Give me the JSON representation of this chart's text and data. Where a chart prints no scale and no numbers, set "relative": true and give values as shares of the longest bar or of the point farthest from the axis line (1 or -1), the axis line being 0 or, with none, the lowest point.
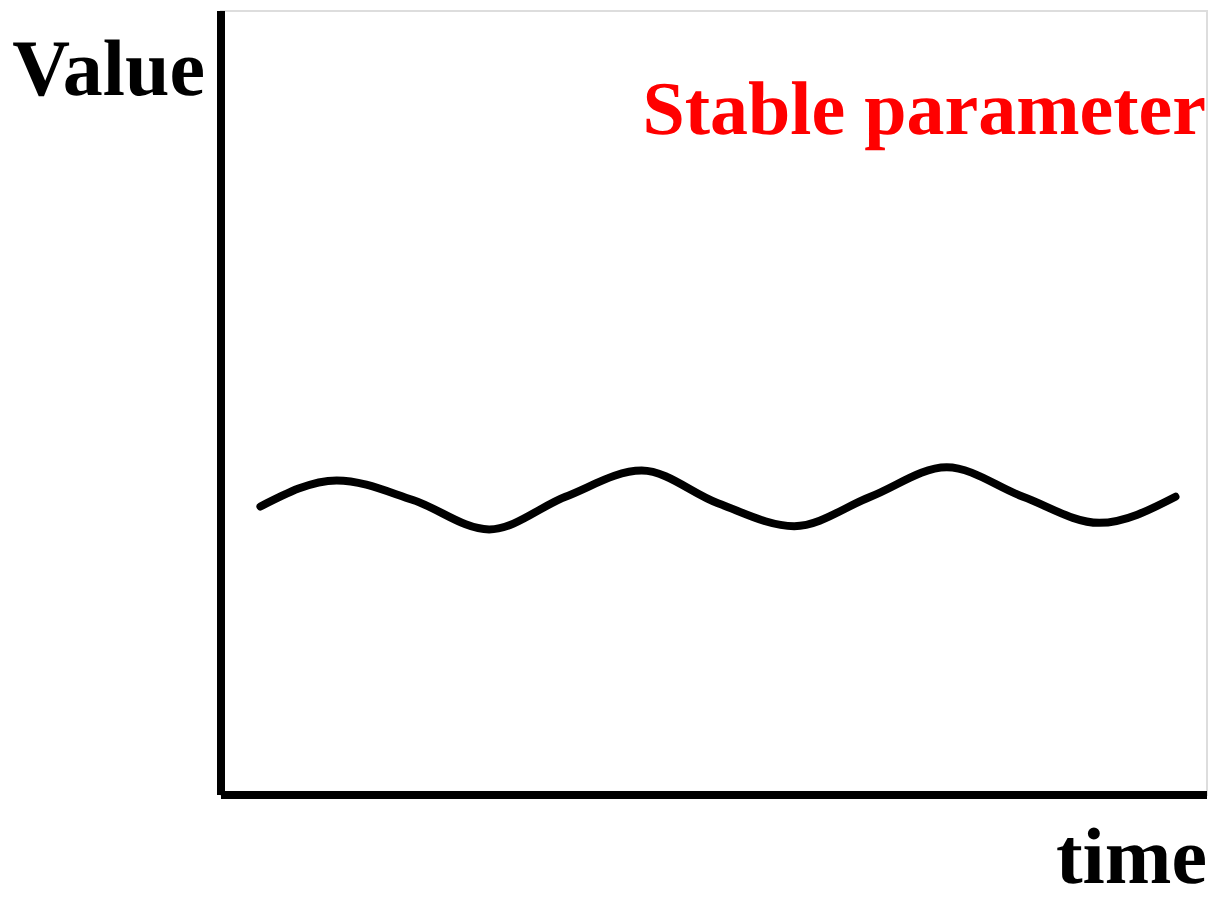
{
  "chart_data": {
    "type": "line",
    "title": "Stable parameter",
    "xlabel": "time",
    "ylabel": "Value",
    "relative": true,
    "grid": false,
    "legend": false,
    "marker": "none",
    "line_style": "solid",
    "categories": [
      null,
      null,
      null,
      null,
      null,
      null,
      null,
      null,
      null,
      null,
      null,
      null,
      null
    ],
    "series": [
      {
        "color": "#000000",
        "values": [
          0.88,
          0.96,
          0.9,
          0.81,
          0.91,
          0.99,
          0.89,
          0.82,
          0.91,
          1.0,
          0.91,
          0.83,
          0.91
        ]
      }
    ]
  }
}
